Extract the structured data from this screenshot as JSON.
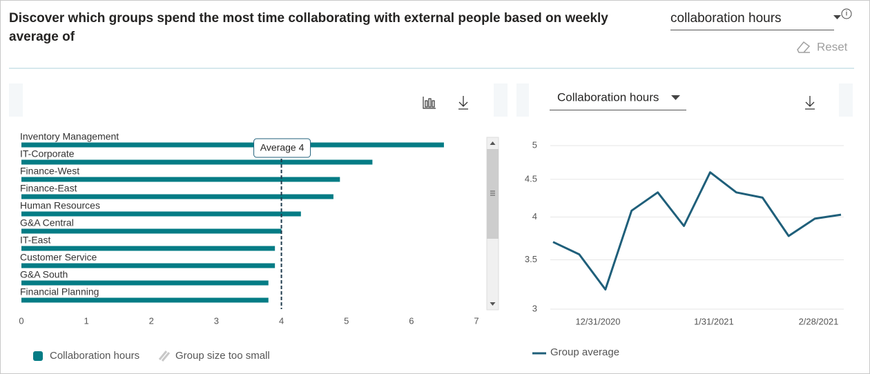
{
  "header": {
    "title_line1": "Discover which groups spend the most time collaborating with external people based on weekly",
    "title_line2": "average of",
    "metric_select": "collaboration hours",
    "reset": "Reset"
  },
  "chart_data": [
    {
      "type": "hbar",
      "categories": [
        "Inventory Management",
        "IT-Corporate",
        "Finance-West",
        "Finance-East",
        "Human Resources",
        "G&A Central",
        "IT-East",
        "Customer Service",
        "G&A South",
        "Financial Planning"
      ],
      "series": [
        {
          "name": "Collaboration hours",
          "color": "#047c85",
          "values": [
            6.5,
            5.4,
            4.9,
            4.8,
            4.3,
            4.0,
            3.9,
            3.9,
            3.8,
            3.8
          ]
        }
      ],
      "other_legend": {
        "name": "Group size too small",
        "color": "#c8c8c8"
      },
      "average": {
        "value": 4,
        "label": "Average 4"
      },
      "xlim": [
        0,
        7
      ],
      "xticks": [
        0,
        1,
        2,
        3,
        4,
        5,
        6,
        7
      ]
    },
    {
      "type": "line",
      "selector": "Collaboration hours",
      "x": [
        "2020-12-19",
        "2020-12-26",
        "2021-01-02",
        "2021-01-09",
        "2021-01-16",
        "2021-01-23",
        "2021-01-30",
        "2021-02-06",
        "2021-02-13",
        "2021-02-20",
        "2021-02-27",
        "2021-03-06"
      ],
      "series": [
        {
          "name": "Group average",
          "color": "#1f5f7a",
          "values": [
            3.7,
            3.56,
            3.19,
            4.08,
            4.32,
            3.89,
            4.6,
            4.32,
            4.25,
            3.77,
            3.98,
            4.03
          ]
        }
      ],
      "xlim": [
        "2020-12-18",
        "2021-03-07"
      ],
      "xticks": [
        {
          "value": "2020-12-31",
          "label": "12/31/2020"
        },
        {
          "value": "2021-01-31",
          "label": "1/31/2021"
        },
        {
          "value": "2021-02-28",
          "label": "2/28/2021"
        }
      ],
      "ylim": [
        3,
        5
      ],
      "yticks": [
        3,
        3.5,
        4,
        4.5,
        5
      ],
      "log": true,
      "grid": true
    }
  ]
}
